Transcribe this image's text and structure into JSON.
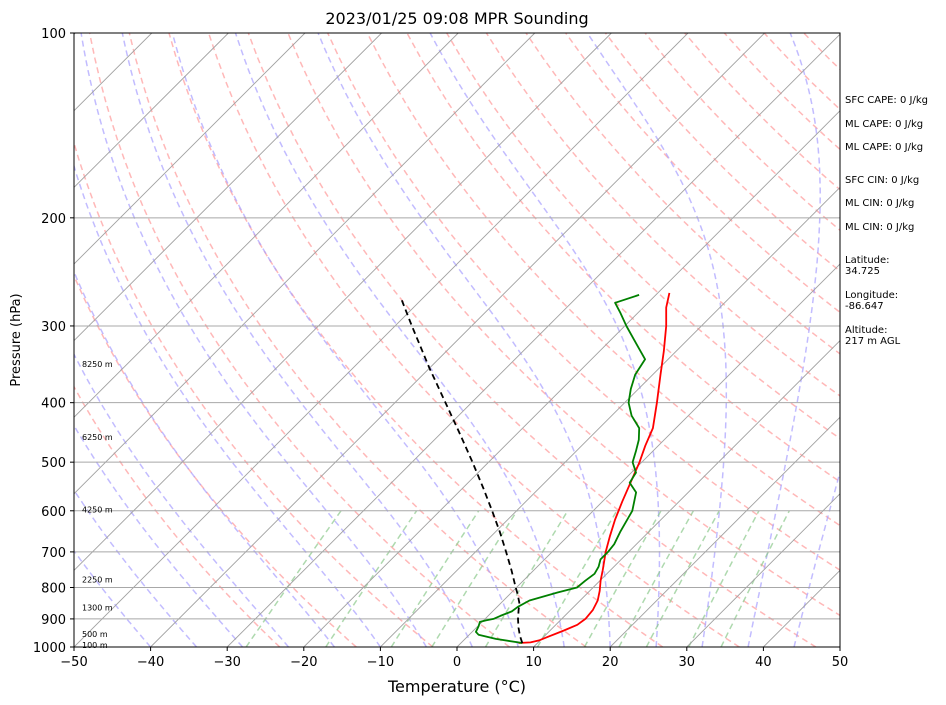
{
  "chart_data": {
    "type": "line",
    "title": "2023/01/25 09:08 MPR Sounding",
    "xlabel": "Temperature (°C)",
    "ylabel": "Pressure (hPa)",
    "xlim": [
      -50,
      50
    ],
    "ylim": [
      1000,
      100
    ],
    "y_scale": "log",
    "x_ticks": [
      "−50",
      "−40",
      "−30",
      "−20",
      "−10",
      "0",
      "10",
      "20",
      "30",
      "40",
      "50"
    ],
    "y_ticks": [
      {
        "p": 100,
        "label": "100"
      },
      {
        "p": 200,
        "label": "200"
      },
      {
        "p": 300,
        "label": "300"
      },
      {
        "p": 400,
        "label": "400"
      },
      {
        "p": 500,
        "label": "500"
      },
      {
        "p": 600,
        "label": "600"
      },
      {
        "p": 700,
        "label": "700"
      },
      {
        "p": 800,
        "label": "800"
      },
      {
        "p": 900,
        "label": "900"
      },
      {
        "p": 1000,
        "label": "1000"
      }
    ],
    "height_labels": [
      {
        "p": 992,
        "label": "100 m"
      },
      {
        "p": 952,
        "label": "500 m"
      },
      {
        "p": 863,
        "label": "1300 m"
      },
      {
        "p": 777,
        "label": "2250 m"
      },
      {
        "p": 597,
        "label": "4250 m"
      },
      {
        "p": 455,
        "label": "6250 m"
      },
      {
        "p": 346,
        "label": "8250 m"
      }
    ],
    "series": [
      {
        "color": "#ff0000",
        "points": [
          [
            985,
            7.5
          ],
          [
            983,
            9.0
          ],
          [
            975,
            9.9
          ],
          [
            960,
            10.7
          ],
          [
            940,
            11.8
          ],
          [
            920,
            12.8
          ],
          [
            900,
            13.1
          ],
          [
            870,
            12.9
          ],
          [
            840,
            12.3
          ],
          [
            810,
            11.3
          ],
          [
            780,
            10.1
          ],
          [
            750,
            9.0
          ],
          [
            700,
            7.0
          ],
          [
            660,
            5.5
          ],
          [
            620,
            4.0
          ],
          [
            580,
            2.6
          ],
          [
            540,
            1.2
          ],
          [
            500,
            -0.3
          ],
          [
            470,
            -1.7
          ],
          [
            440,
            -3.0
          ],
          [
            400,
            -5.8
          ],
          [
            360,
            -9.0
          ],
          [
            330,
            -11.6
          ],
          [
            300,
            -14.6
          ],
          [
            280,
            -17.0
          ],
          [
            265,
            -18.5
          ]
        ]
      },
      {
        "color": "#008000",
        "points": [
          [
            985,
            8.0
          ],
          [
            970,
            4.0
          ],
          [
            955,
            1.2
          ],
          [
            945,
            0.5
          ],
          [
            925,
            0.1
          ],
          [
            910,
            -0.3
          ],
          [
            905,
            0.3
          ],
          [
            900,
            1.1
          ],
          [
            890,
            1.6
          ],
          [
            875,
            2.5
          ],
          [
            860,
            2.7
          ],
          [
            840,
            3.4
          ],
          [
            815,
            6.0
          ],
          [
            800,
            7.9
          ],
          [
            780,
            8.1
          ],
          [
            760,
            8.4
          ],
          [
            740,
            8.0
          ],
          [
            720,
            7.3
          ],
          [
            700,
            7.3
          ],
          [
            680,
            7.1
          ],
          [
            650,
            6.3
          ],
          [
            600,
            5.1
          ],
          [
            560,
            3.2
          ],
          [
            540,
            1.1
          ],
          [
            520,
            0.6
          ],
          [
            500,
            -1.2
          ],
          [
            480,
            -2.2
          ],
          [
            460,
            -3.3
          ],
          [
            440,
            -4.8
          ],
          [
            420,
            -7.4
          ],
          [
            400,
            -9.5
          ],
          [
            380,
            -11.0
          ],
          [
            360,
            -12.3
          ],
          [
            340,
            -13.0
          ],
          [
            320,
            -16.3
          ],
          [
            300,
            -19.8
          ],
          [
            285,
            -22.4
          ],
          [
            275,
            -24.3
          ],
          [
            267,
            -22.2
          ]
        ]
      },
      {
        "color": "#000000",
        "dashed": true,
        "points": [
          [
            985,
            8.0
          ],
          [
            960,
            6.8
          ],
          [
            930,
            5.5
          ],
          [
            900,
            4.3
          ],
          [
            870,
            3.2
          ],
          [
            850,
            2.5
          ],
          [
            820,
            1.0
          ],
          [
            800,
            -0.1
          ],
          [
            750,
            -2.9
          ],
          [
            700,
            -6.0
          ],
          [
            650,
            -9.4
          ],
          [
            600,
            -13.2
          ],
          [
            550,
            -17.4
          ],
          [
            500,
            -22.1
          ],
          [
            450,
            -27.4
          ],
          [
            400,
            -33.4
          ],
          [
            350,
            -40.2
          ],
          [
            300,
            -47.8
          ],
          [
            270,
            -52.9
          ]
        ]
      }
    ],
    "annotations": {
      "sfc_cape": "SFC CAPE: 0 J/kg",
      "ml_cape": "ML CAPE: 0 J/kg",
      "ml_cape_2": "ML CAPE: 0 J/kg",
      "sfc_cin": "SFC CIN: 0 J/kg",
      "ml_cin": "ML CIN: 0 J/kg",
      "ml_cin_2": "ML CIN: 0 J/kg",
      "latitude": "Latitude:\n34.725",
      "longitude": "Longitude:\n-86.647",
      "altitude": "Altitude:\n217 m AGL"
    },
    "colors": {
      "temperature": "#ff0000",
      "dewpoint": "#008000",
      "parcel": "#000000",
      "dry_adiabats": "#ff9a9a",
      "moist_adiabats": "#a8a0ff",
      "mixing_ratio": "#8cc98c",
      "isotherms": "#a0a0a0"
    },
    "grid": true
  }
}
